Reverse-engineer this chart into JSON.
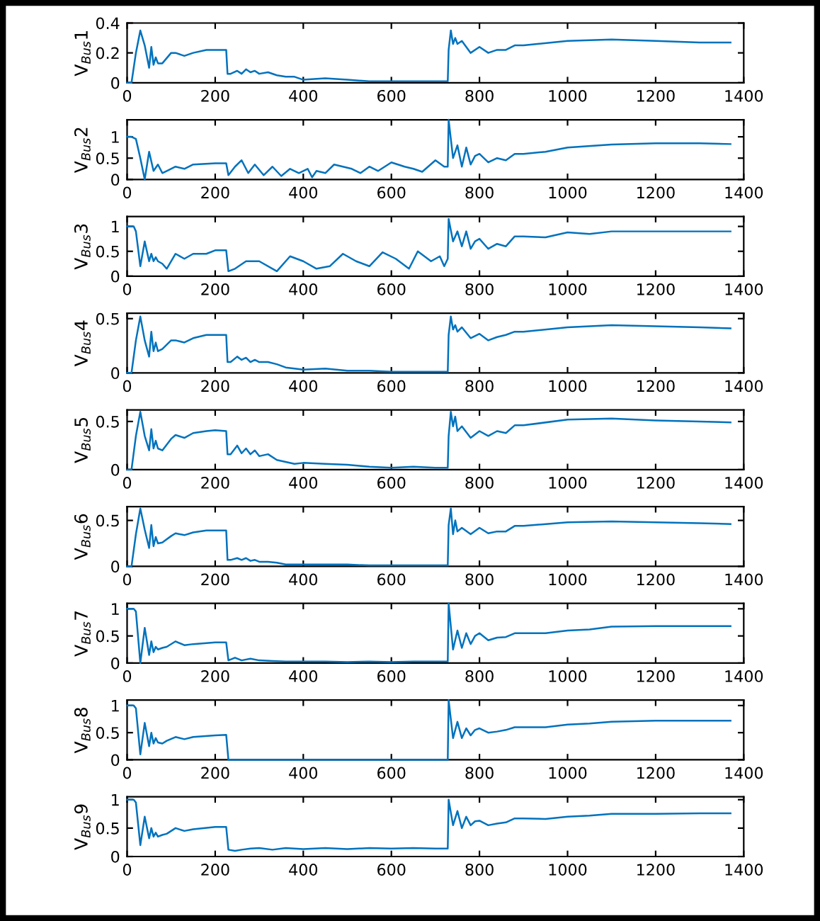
{
  "chart_data": [
    {
      "type": "line",
      "ylabel": "V$_{Bus}$1",
      "xlim": [
        0,
        1400
      ],
      "xticks": [
        0,
        200,
        400,
        600,
        800,
        1000,
        1200,
        1400
      ],
      "ylim": [
        0,
        0.4
      ],
      "yticks": [
        0,
        0.2,
        0.4
      ],
      "series": [
        {
          "color": "#0072bd",
          "x": [
            0,
            10,
            20,
            30,
            40,
            50,
            55,
            60,
            65,
            70,
            80,
            100,
            110,
            130,
            150,
            180,
            200,
            225,
            228,
            235,
            250,
            260,
            270,
            280,
            290,
            300,
            320,
            340,
            360,
            380,
            400,
            450,
            500,
            550,
            600,
            650,
            700,
            728,
            730,
            735,
            740,
            745,
            750,
            760,
            780,
            800,
            820,
            840,
            860,
            880,
            900,
            1000,
            1100,
            1200,
            1300,
            1370
          ],
          "values": [
            0,
            0,
            0.2,
            0.35,
            0.25,
            0.1,
            0.24,
            0.12,
            0.17,
            0.13,
            0.13,
            0.2,
            0.2,
            0.18,
            0.2,
            0.22,
            0.22,
            0.22,
            0.06,
            0.06,
            0.08,
            0.06,
            0.09,
            0.07,
            0.08,
            0.06,
            0.07,
            0.05,
            0.04,
            0.04,
            0.02,
            0.03,
            0.02,
            0.01,
            0.01,
            0.01,
            0.01,
            0.01,
            0.22,
            0.35,
            0.26,
            0.3,
            0.26,
            0.28,
            0.2,
            0.24,
            0.2,
            0.22,
            0.22,
            0.25,
            0.25,
            0.28,
            0.29,
            0.28,
            0.27,
            0.27
          ]
        }
      ]
    },
    {
      "type": "line",
      "ylabel": "V$_{Bus}$2",
      "xlim": [
        0,
        1400
      ],
      "xticks": [
        0,
        200,
        400,
        600,
        800,
        1000,
        1200,
        1400
      ],
      "ylim": [
        0,
        1.4
      ],
      "yticks": [
        0,
        0.5,
        1
      ],
      "series": [
        {
          "color": "#0072bd",
          "x": [
            0,
            10,
            20,
            30,
            40,
            50,
            60,
            70,
            80,
            90,
            110,
            130,
            150,
            200,
            225,
            230,
            245,
            260,
            275,
            290,
            310,
            330,
            350,
            370,
            390,
            410,
            420,
            430,
            450,
            470,
            490,
            510,
            530,
            550,
            570,
            600,
            630,
            650,
            670,
            700,
            720,
            728,
            730,
            740,
            750,
            760,
            770,
            780,
            790,
            800,
            820,
            840,
            860,
            880,
            900,
            950,
            1000,
            1100,
            1200,
            1300,
            1370
          ],
          "values": [
            1,
            1,
            0.95,
            0.5,
            0,
            0.65,
            0.2,
            0.35,
            0.15,
            0.2,
            0.3,
            0.25,
            0.35,
            0.38,
            0.38,
            0.1,
            0.3,
            0.45,
            0.15,
            0.35,
            0.1,
            0.3,
            0.08,
            0.25,
            0.15,
            0.25,
            0.05,
            0.2,
            0.15,
            0.35,
            0.3,
            0.25,
            0.15,
            0.3,
            0.2,
            0.4,
            0.3,
            0.25,
            0.18,
            0.45,
            0.3,
            0.3,
            1.4,
            0.5,
            0.8,
            0.3,
            0.75,
            0.35,
            0.55,
            0.6,
            0.4,
            0.5,
            0.45,
            0.6,
            0.6,
            0.65,
            0.75,
            0.82,
            0.85,
            0.85,
            0.83
          ]
        }
      ]
    },
    {
      "type": "line",
      "ylabel": "V$_{Bus}$3",
      "xlim": [
        0,
        1400
      ],
      "xticks": [
        0,
        200,
        400,
        600,
        800,
        1000,
        1200,
        1400
      ],
      "ylim": [
        0,
        1.2
      ],
      "yticks": [
        0,
        0.5,
        1
      ],
      "series": [
        {
          "color": "#0072bd",
          "x": [
            0,
            15,
            20,
            30,
            40,
            50,
            55,
            60,
            65,
            70,
            80,
            90,
            110,
            130,
            150,
            180,
            200,
            225,
            230,
            245,
            270,
            300,
            340,
            370,
            400,
            430,
            460,
            490,
            520,
            550,
            580,
            610,
            640,
            660,
            690,
            710,
            720,
            728,
            730,
            740,
            750,
            760,
            770,
            780,
            790,
            800,
            820,
            840,
            860,
            880,
            900,
            950,
            1000,
            1050,
            1100,
            1200,
            1300,
            1370
          ],
          "values": [
            1,
            1,
            0.9,
            0.2,
            0.7,
            0.3,
            0.45,
            0.3,
            0.38,
            0.3,
            0.25,
            0.15,
            0.45,
            0.35,
            0.45,
            0.45,
            0.52,
            0.52,
            0.1,
            0.15,
            0.3,
            0.3,
            0.1,
            0.4,
            0.3,
            0.15,
            0.2,
            0.45,
            0.3,
            0.2,
            0.48,
            0.35,
            0.15,
            0.5,
            0.3,
            0.4,
            0.2,
            0.35,
            1.15,
            0.7,
            0.9,
            0.6,
            0.9,
            0.55,
            0.7,
            0.75,
            0.55,
            0.65,
            0.6,
            0.8,
            0.8,
            0.78,
            0.88,
            0.85,
            0.9,
            0.9,
            0.9,
            0.9
          ]
        }
      ]
    },
    {
      "type": "line",
      "ylabel": "V$_{Bus}$4",
      "xlim": [
        0,
        1400
      ],
      "xticks": [
        0,
        200,
        400,
        600,
        800,
        1000,
        1200,
        1400
      ],
      "ylim": [
        0,
        0.55
      ],
      "yticks": [
        0,
        0.5
      ],
      "series": [
        {
          "color": "#0072bd",
          "x": [
            0,
            10,
            20,
            30,
            40,
            50,
            55,
            60,
            65,
            70,
            80,
            100,
            110,
            130,
            150,
            180,
            200,
            225,
            228,
            235,
            250,
            260,
            270,
            280,
            290,
            300,
            320,
            340,
            360,
            380,
            400,
            450,
            500,
            550,
            600,
            650,
            700,
            728,
            730,
            735,
            740,
            745,
            750,
            760,
            780,
            800,
            820,
            840,
            860,
            880,
            900,
            1000,
            1100,
            1200,
            1300,
            1370
          ],
          "values": [
            0,
            0,
            0.3,
            0.52,
            0.3,
            0.15,
            0.38,
            0.2,
            0.28,
            0.2,
            0.22,
            0.3,
            0.3,
            0.28,
            0.32,
            0.35,
            0.35,
            0.35,
            0.1,
            0.1,
            0.15,
            0.12,
            0.14,
            0.1,
            0.12,
            0.1,
            0.1,
            0.08,
            0.05,
            0.04,
            0.03,
            0.04,
            0.02,
            0.02,
            0.01,
            0.01,
            0.01,
            0.01,
            0.35,
            0.52,
            0.4,
            0.44,
            0.38,
            0.42,
            0.32,
            0.36,
            0.3,
            0.33,
            0.35,
            0.38,
            0.38,
            0.42,
            0.44,
            0.43,
            0.42,
            0.41
          ]
        }
      ]
    },
    {
      "type": "line",
      "ylabel": "V$_{Bus}$5",
      "xlim": [
        0,
        1400
      ],
      "xticks": [
        0,
        200,
        400,
        600,
        800,
        1000,
        1200,
        1400
      ],
      "ylim": [
        0,
        0.62
      ],
      "yticks": [
        0,
        0.5
      ],
      "series": [
        {
          "color": "#0072bd",
          "x": [
            0,
            10,
            20,
            30,
            40,
            50,
            55,
            60,
            65,
            70,
            80,
            100,
            110,
            130,
            150,
            180,
            200,
            225,
            228,
            235,
            250,
            260,
            270,
            280,
            290,
            300,
            320,
            340,
            360,
            380,
            400,
            450,
            500,
            550,
            600,
            650,
            700,
            728,
            730,
            735,
            740,
            745,
            750,
            760,
            780,
            800,
            820,
            840,
            860,
            880,
            900,
            1000,
            1100,
            1200,
            1300,
            1370
          ],
          "values": [
            0,
            0,
            0.35,
            0.6,
            0.35,
            0.2,
            0.42,
            0.22,
            0.3,
            0.22,
            0.2,
            0.32,
            0.36,
            0.33,
            0.38,
            0.4,
            0.41,
            0.4,
            0.16,
            0.16,
            0.25,
            0.17,
            0.22,
            0.16,
            0.2,
            0.14,
            0.16,
            0.1,
            0.08,
            0.06,
            0.07,
            0.06,
            0.05,
            0.03,
            0.02,
            0.03,
            0.02,
            0.02,
            0.35,
            0.6,
            0.45,
            0.55,
            0.4,
            0.45,
            0.33,
            0.4,
            0.35,
            0.4,
            0.38,
            0.46,
            0.46,
            0.52,
            0.53,
            0.51,
            0.5,
            0.49
          ]
        }
      ]
    },
    {
      "type": "line",
      "ylabel": "V$_{Bus}$6",
      "xlim": [
        0,
        1400
      ],
      "xticks": [
        0,
        200,
        400,
        600,
        800,
        1000,
        1200,
        1400
      ],
      "ylim": [
        0,
        0.65
      ],
      "yticks": [
        0,
        0.5
      ],
      "series": [
        {
          "color": "#0072bd",
          "x": [
            0,
            10,
            20,
            30,
            40,
            50,
            55,
            60,
            65,
            70,
            80,
            100,
            110,
            130,
            150,
            180,
            200,
            225,
            228,
            235,
            250,
            260,
            270,
            280,
            290,
            300,
            320,
            340,
            360,
            380,
            400,
            450,
            500,
            550,
            600,
            650,
            700,
            728,
            730,
            735,
            740,
            745,
            750,
            760,
            780,
            800,
            820,
            840,
            860,
            880,
            900,
            1000,
            1100,
            1200,
            1300,
            1370
          ],
          "values": [
            0,
            0,
            0.35,
            0.63,
            0.4,
            0.2,
            0.45,
            0.22,
            0.32,
            0.25,
            0.26,
            0.33,
            0.36,
            0.34,
            0.37,
            0.39,
            0.39,
            0.39,
            0.07,
            0.07,
            0.09,
            0.07,
            0.09,
            0.06,
            0.07,
            0.05,
            0.05,
            0.04,
            0.02,
            0.02,
            0.02,
            0.02,
            0.02,
            0.01,
            0.01,
            0.01,
            0.01,
            0.01,
            0.45,
            0.63,
            0.35,
            0.5,
            0.38,
            0.42,
            0.35,
            0.42,
            0.36,
            0.38,
            0.38,
            0.44,
            0.44,
            0.48,
            0.49,
            0.48,
            0.47,
            0.46
          ]
        }
      ]
    },
    {
      "type": "line",
      "ylabel": "V$_{Bus}$7",
      "xlim": [
        0,
        1400
      ],
      "xticks": [
        0,
        200,
        400,
        600,
        800,
        1000,
        1200,
        1400
      ],
      "ylim": [
        0,
        1.1
      ],
      "yticks": [
        0,
        0.5,
        1
      ],
      "series": [
        {
          "color": "#0072bd",
          "x": [
            0,
            15,
            20,
            30,
            40,
            50,
            55,
            60,
            65,
            70,
            80,
            90,
            110,
            130,
            150,
            200,
            225,
            230,
            245,
            260,
            280,
            300,
            330,
            360,
            400,
            450,
            500,
            550,
            600,
            650,
            700,
            728,
            730,
            740,
            750,
            760,
            770,
            780,
            790,
            800,
            820,
            840,
            860,
            880,
            900,
            950,
            1000,
            1050,
            1100,
            1200,
            1300,
            1370
          ],
          "values": [
            1,
            1,
            0.95,
            0,
            0.65,
            0.15,
            0.4,
            0.2,
            0.3,
            0.25,
            0.28,
            0.3,
            0.4,
            0.33,
            0.35,
            0.38,
            0.38,
            0.05,
            0.1,
            0.05,
            0.08,
            0.05,
            0.04,
            0.03,
            0.03,
            0.03,
            0.02,
            0.03,
            0.02,
            0.03,
            0.03,
            0.03,
            1.1,
            0.25,
            0.6,
            0.28,
            0.55,
            0.35,
            0.5,
            0.55,
            0.42,
            0.47,
            0.48,
            0.55,
            0.55,
            0.55,
            0.6,
            0.62,
            0.67,
            0.68,
            0.68,
            0.68
          ]
        }
      ]
    },
    {
      "type": "line",
      "ylabel": "V$_{Bus}$8",
      "xlim": [
        0,
        1400
      ],
      "xticks": [
        0,
        200,
        400,
        600,
        800,
        1000,
        1200,
        1400
      ],
      "ylim": [
        0,
        1.1
      ],
      "yticks": [
        0,
        0.5,
        1
      ],
      "series": [
        {
          "color": "#0072bd",
          "x": [
            0,
            15,
            20,
            30,
            40,
            50,
            55,
            60,
            65,
            70,
            80,
            90,
            110,
            130,
            150,
            200,
            225,
            230,
            245,
            260,
            280,
            300,
            330,
            360,
            400,
            450,
            500,
            550,
            600,
            650,
            700,
            728,
            730,
            740,
            750,
            760,
            770,
            780,
            790,
            800,
            820,
            840,
            860,
            880,
            900,
            950,
            1000,
            1050,
            1100,
            1200,
            1300,
            1370
          ],
          "values": [
            1,
            1,
            0.95,
            0.1,
            0.68,
            0.25,
            0.5,
            0.3,
            0.4,
            0.32,
            0.3,
            0.35,
            0.42,
            0.38,
            0.42,
            0.45,
            0.46,
            0,
            0,
            0,
            0,
            0,
            0,
            0,
            0,
            0,
            0,
            0,
            0,
            0,
            0,
            0,
            1.1,
            0.4,
            0.7,
            0.4,
            0.58,
            0.45,
            0.55,
            0.58,
            0.5,
            0.52,
            0.55,
            0.6,
            0.6,
            0.6,
            0.65,
            0.67,
            0.7,
            0.72,
            0.72,
            0.72
          ]
        }
      ]
    },
    {
      "type": "line",
      "ylabel": "V$_{Bus}$9",
      "xlim": [
        0,
        1400
      ],
      "xticks": [
        0,
        200,
        400,
        600,
        800,
        1000,
        1200,
        1400
      ],
      "ylim": [
        0,
        1.05
      ],
      "yticks": [
        0,
        0.5,
        1
      ],
      "series": [
        {
          "color": "#0072bd",
          "x": [
            0,
            15,
            20,
            30,
            40,
            50,
            55,
            60,
            65,
            70,
            80,
            90,
            110,
            130,
            150,
            200,
            225,
            230,
            245,
            260,
            280,
            300,
            330,
            360,
            400,
            450,
            500,
            550,
            600,
            650,
            700,
            728,
            730,
            740,
            750,
            760,
            770,
            780,
            790,
            800,
            820,
            840,
            860,
            880,
            900,
            950,
            1000,
            1050,
            1100,
            1200,
            1300,
            1370
          ],
          "values": [
            1,
            1,
            0.95,
            0.2,
            0.7,
            0.32,
            0.5,
            0.35,
            0.42,
            0.35,
            0.38,
            0.4,
            0.5,
            0.45,
            0.48,
            0.52,
            0.52,
            0.12,
            0.1,
            0.12,
            0.14,
            0.15,
            0.12,
            0.15,
            0.13,
            0.15,
            0.13,
            0.15,
            0.14,
            0.15,
            0.14,
            0.14,
            1.0,
            0.55,
            0.8,
            0.5,
            0.7,
            0.55,
            0.62,
            0.63,
            0.55,
            0.58,
            0.6,
            0.67,
            0.67,
            0.66,
            0.7,
            0.72,
            0.75,
            0.75,
            0.76,
            0.76
          ]
        }
      ]
    }
  ]
}
